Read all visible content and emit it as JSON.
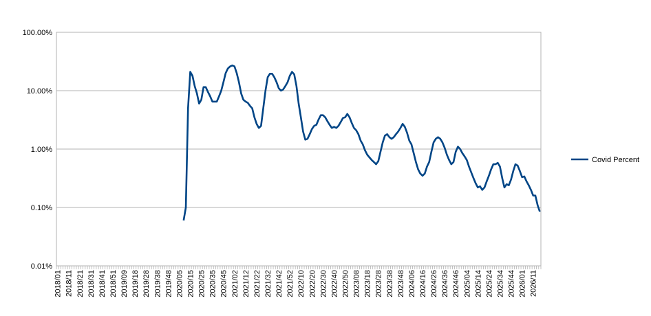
{
  "chart_data": {
    "type": "line",
    "categories": [
      "2018/01",
      null,
      null,
      null,
      null,
      "2018/11",
      null,
      null,
      null,
      null,
      "2018/21",
      null,
      null,
      null,
      null,
      "2018/31",
      null,
      null,
      null,
      null,
      "2018/41",
      null,
      null,
      null,
      null,
      "2018/51",
      null,
      null,
      null,
      null,
      "2019/09",
      null,
      null,
      null,
      null,
      "2019/18",
      null,
      null,
      null,
      null,
      "2019/28",
      null,
      null,
      null,
      null,
      "2019/38",
      null,
      null,
      null,
      null,
      "2019/48",
      null,
      null,
      null,
      null,
      "2020/05",
      null,
      null,
      null,
      null,
      "2020/15",
      null,
      null,
      null,
      null,
      "2020/25",
      null,
      null,
      null,
      null,
      "2020/35",
      null,
      null,
      null,
      null,
      "2020/45",
      null,
      null,
      null,
      null,
      "2021/02",
      null,
      null,
      null,
      null,
      "2021/12",
      null,
      null,
      null,
      null,
      "2021/22",
      null,
      null,
      null,
      null,
      "2021/32",
      null,
      null,
      null,
      null,
      "2021/42",
      null,
      null,
      null,
      null,
      "2021/52",
      null,
      null,
      null,
      null,
      "2022/10",
      null,
      null,
      null,
      null,
      "2022/20",
      null,
      null,
      null,
      null,
      "2022/30",
      null,
      null,
      null,
      null,
      "2022/40",
      null,
      null,
      null,
      null,
      "2022/50",
      null,
      null,
      null,
      null,
      "2023/08",
      null,
      null,
      null,
      null,
      "2023/18",
      null,
      null,
      null,
      null,
      "2023/28",
      null,
      null,
      null,
      null,
      "2023/38",
      null,
      null,
      null,
      null,
      "2023/48",
      null,
      null,
      null,
      null,
      "2024/06",
      null,
      null,
      null,
      null,
      "2024/16",
      null,
      null,
      null,
      null,
      "2024/26",
      null,
      null,
      null,
      null,
      "2024/36",
      null,
      null,
      null,
      null,
      "2024/46",
      null,
      null,
      null,
      null,
      "2025/04",
      null,
      null,
      null,
      null,
      "2025/14",
      null,
      null,
      null,
      null,
      "2025/24",
      null,
      null,
      null,
      null,
      "2025/34",
      null,
      null,
      null,
      null,
      "2025/44",
      null,
      null,
      null,
      null,
      "2026/01",
      null,
      null,
      null,
      null,
      "2026/11",
      null,
      null,
      null
    ],
    "series": [
      {
        "name": "Covid Percent",
        "color": "#004586",
        "values": [
          null,
          null,
          null,
          null,
          null,
          null,
          null,
          null,
          null,
          null,
          null,
          null,
          null,
          null,
          null,
          null,
          null,
          null,
          null,
          null,
          null,
          null,
          null,
          null,
          null,
          null,
          null,
          null,
          null,
          null,
          null,
          null,
          null,
          null,
          null,
          null,
          null,
          null,
          null,
          null,
          null,
          null,
          null,
          null,
          null,
          null,
          null,
          null,
          null,
          null,
          null,
          null,
          null,
          null,
          null,
          null,
          null,
          0.06,
          0.1,
          5,
          21,
          18,
          12,
          9,
          6,
          7,
          11.5,
          11.5,
          9.5,
          8,
          6.5,
          6.5,
          6.5,
          8,
          10,
          14,
          20,
          24,
          26,
          27,
          26,
          20,
          14,
          9,
          7,
          6.5,
          6.2,
          5.5,
          5,
          3.5,
          2.7,
          2.3,
          2.5,
          5,
          10,
          17,
          19.5,
          19.5,
          17,
          14,
          11,
          10,
          10.5,
          12,
          14,
          18,
          21,
          19,
          12,
          6,
          3.5,
          2,
          1.45,
          1.5,
          1.8,
          2.2,
          2.5,
          2.6,
          3.2,
          3.8,
          3.8,
          3.5,
          3,
          2.6,
          2.3,
          2.4,
          2.3,
          2.5,
          2.9,
          3.4,
          3.5,
          4,
          3.5,
          2.8,
          2.3,
          2.1,
          1.8,
          1.4,
          1.2,
          0.95,
          0.8,
          0.72,
          0.65,
          0.6,
          0.55,
          0.62,
          0.9,
          1.3,
          1.7,
          1.8,
          1.6,
          1.5,
          1.6,
          1.8,
          2,
          2.3,
          2.7,
          2.4,
          1.9,
          1.4,
          1.2,
          0.85,
          0.6,
          0.45,
          0.38,
          0.35,
          0.38,
          0.5,
          0.6,
          0.9,
          1.3,
          1.5,
          1.6,
          1.5,
          1.3,
          1.05,
          0.8,
          0.65,
          0.55,
          0.6,
          0.9,
          1.1,
          1,
          0.85,
          0.75,
          0.65,
          0.5,
          0.4,
          0.32,
          0.26,
          0.22,
          0.23,
          0.2,
          0.22,
          0.28,
          0.35,
          0.45,
          0.55,
          0.55,
          0.58,
          0.5,
          0.32,
          0.22,
          0.25,
          0.24,
          0.3,
          0.42,
          0.55,
          0.52,
          0.42,
          0.33,
          0.34,
          0.28,
          0.24,
          0.2,
          0.16,
          0.16,
          0.11,
          0.085
        ]
      }
    ],
    "ylim": [
      0.01,
      100
    ],
    "log_scale": true,
    "yticks": [
      {
        "value": 0.01,
        "label": "0.01%"
      },
      {
        "value": 0.1,
        "label": "0.10%"
      },
      {
        "value": 1,
        "label": "1.00%"
      },
      {
        "value": 10,
        "label": "10.00%"
      },
      {
        "value": 100,
        "label": "100.00%"
      }
    ],
    "grid": true,
    "legend": "right"
  }
}
